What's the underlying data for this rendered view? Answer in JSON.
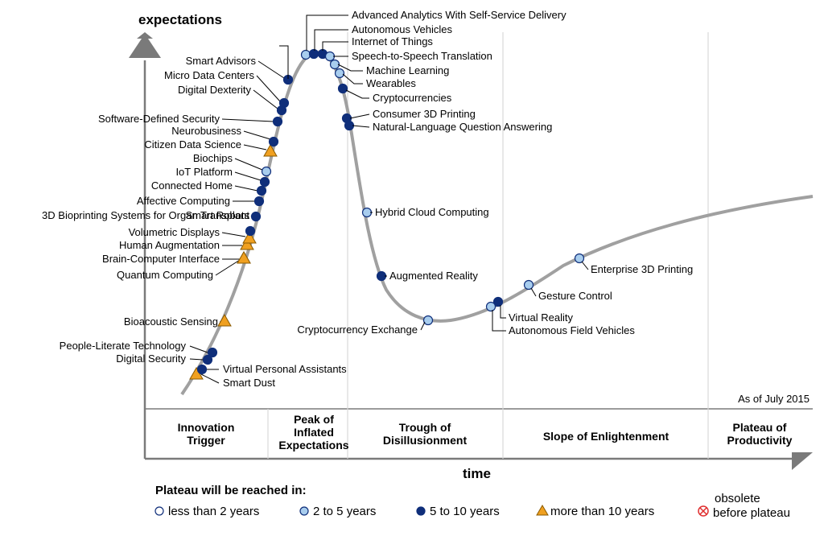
{
  "chart_data": {
    "type": "scatter",
    "title": "",
    "ylabel": "expectations",
    "xlabel": "time",
    "as_of": "As of July 2015",
    "grid": false,
    "phases": [
      {
        "lines": [
          "Innovation",
          "Trigger"
        ]
      },
      {
        "lines": [
          "Peak of",
          "Inflated",
          "Expectations"
        ]
      },
      {
        "lines": [
          "Trough of",
          "Disillusionment"
        ]
      },
      {
        "lines": [
          "Slope of Enlightenment"
        ]
      },
      {
        "lines": [
          "Plateau of",
          "Productivity"
        ]
      }
    ],
    "colors": {
      "curve": "#a0a0a0",
      "less_than_2": "#ffffff",
      "two_to_five": "#a8cdee",
      "five_to_ten": "#0f2e7a",
      "more_than_10": "#f0a020",
      "obsolete": "#e03030",
      "marker_stroke": "#0f2e7a"
    },
    "legend": {
      "title": "Plateau will be reached in:",
      "items": [
        {
          "key": "less_than_2",
          "label": "less than 2 years"
        },
        {
          "key": "two_to_five",
          "label": "2 to 5 years"
        },
        {
          "key": "five_to_ten",
          "label": "5 to 10 years"
        },
        {
          "key": "more_than_10",
          "label": "more than 10 years"
        },
        {
          "key": "obsolete",
          "label_lines": [
            "obsolete",
            "before plateau"
          ]
        }
      ]
    },
    "technologies": [
      {
        "name": "Smart Dust",
        "category": "more_than_10"
      },
      {
        "name": "Virtual Personal Assistants",
        "category": "five_to_ten"
      },
      {
        "name": "Digital Security",
        "category": "five_to_ten"
      },
      {
        "name": "People-Literate Technology",
        "category": "five_to_ten"
      },
      {
        "name": "Bioacoustic Sensing",
        "category": "more_than_10"
      },
      {
        "name": "Quantum Computing",
        "category": "more_than_10"
      },
      {
        "name": "Brain-Computer Interface",
        "category": "more_than_10"
      },
      {
        "name": "Human Augmentation",
        "category": "more_than_10"
      },
      {
        "name": "Volumetric Displays",
        "category": "more_than_10"
      },
      {
        "name": "3D Bioprinting Systems for Organ Transplant",
        "category": "five_to_ten"
      },
      {
        "name": "Smart Robots",
        "category": "five_to_ten"
      },
      {
        "name": "Affective Computing",
        "category": "five_to_ten"
      },
      {
        "name": "Connected Home",
        "category": "five_to_ten"
      },
      {
        "name": "IoT Platform",
        "category": "five_to_ten"
      },
      {
        "name": "Biochips",
        "category": "two_to_five"
      },
      {
        "name": "Citizen Data Science",
        "category": "more_than_10"
      },
      {
        "name": "Neurobusiness",
        "category": "five_to_ten"
      },
      {
        "name": "Software-Defined Security",
        "category": "five_to_ten"
      },
      {
        "name": "Digital Dexterity",
        "category": "five_to_ten"
      },
      {
        "name": "Micro Data Centers",
        "category": "five_to_ten"
      },
      {
        "name": "Smart Advisors",
        "category": "five_to_ten"
      },
      {
        "name": "Advanced Analytics With Self-Service Delivery",
        "category": "two_to_five"
      },
      {
        "name": "Autonomous Vehicles",
        "category": "five_to_ten"
      },
      {
        "name": "Internet of Things",
        "category": "five_to_ten"
      },
      {
        "name": "Speech-to-Speech Translation",
        "category": "two_to_five"
      },
      {
        "name": "Machine Learning",
        "category": "two_to_five"
      },
      {
        "name": "Wearables",
        "category": "two_to_five"
      },
      {
        "name": "Cryptocurrencies",
        "category": "five_to_ten"
      },
      {
        "name": "Consumer 3D Printing",
        "category": "five_to_ten"
      },
      {
        "name": "Natural-Language Question Answering",
        "category": "five_to_ten"
      },
      {
        "name": "Hybrid Cloud Computing",
        "category": "two_to_five"
      },
      {
        "name": "Augmented Reality",
        "category": "five_to_ten"
      },
      {
        "name": "Cryptocurrency Exchange",
        "category": "two_to_five"
      },
      {
        "name": "Virtual Reality",
        "category": "five_to_ten"
      },
      {
        "name": "Autonomous Field Vehicles",
        "category": "two_to_five"
      },
      {
        "name": "Gesture Control",
        "category": "two_to_five"
      },
      {
        "name": "Enterprise 3D Printing",
        "category": "two_to_five"
      }
    ]
  }
}
